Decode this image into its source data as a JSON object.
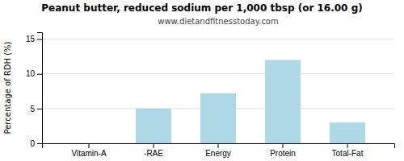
{
  "chart_data": {
    "type": "bar",
    "title": "Peanut butter, reduced sodium per 1,000 tbsp (or 16.00 g)",
    "subtitle": "www.dietandfitnesstoday.com",
    "categories": [
      "Vitamin-A",
      "-RAE",
      "Energy",
      "Protein",
      "Total-Fat"
    ],
    "values": [
      0,
      5,
      7.2,
      12,
      3
    ],
    "color": "#add8e6",
    "ylabel": "Percentage of RDH (%)",
    "ylim": [
      0,
      16
    ],
    "yticks": [
      0,
      5,
      10,
      15
    ],
    "grid": true
  }
}
